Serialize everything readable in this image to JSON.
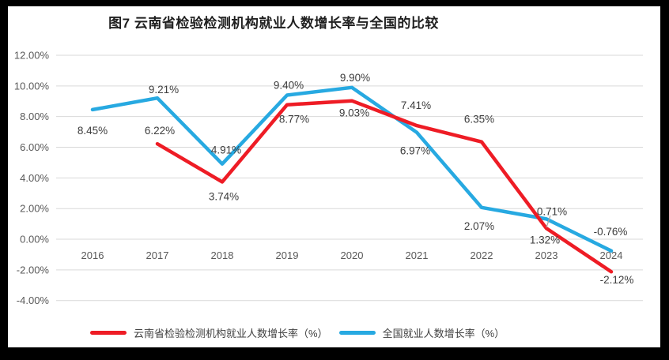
{
  "chart_data": {
    "type": "line",
    "title": "图7  云南省检验检测机构就业人数增长率与全国的比较",
    "categories": [
      "2016",
      "2017",
      "2018",
      "2019",
      "2020",
      "2021",
      "2022",
      "2023",
      "2024"
    ],
    "series": [
      {
        "name": "云南省检验检测机构就业人数增长率（%）",
        "color": "#ee1c25",
        "values": [
          null,
          6.22,
          3.74,
          8.77,
          9.03,
          7.41,
          6.35,
          0.71,
          -2.12
        ],
        "labels": [
          null,
          "6.22%",
          "3.74%",
          "8.77%",
          "9.03%",
          "7.41%",
          "6.35%",
          "0.71%",
          "-2.12%"
        ]
      },
      {
        "name": "全国就业人数增长率（%）",
        "color": "#27a9e1",
        "values": [
          8.45,
          9.21,
          4.91,
          9.4,
          9.9,
          6.97,
          2.07,
          1.32,
          -0.76
        ],
        "labels": [
          "8.45%",
          "9.21%",
          "4.91%",
          "9.40%",
          "9.90%",
          "6.97%",
          "2.07%",
          "1.32%",
          "-0.76%"
        ]
      }
    ],
    "y_axis": {
      "min": -4,
      "max": 12,
      "step": 2,
      "tick_labels": [
        "12.00%",
        "10.00%",
        "8.00%",
        "6.00%",
        "4.00%",
        "2.00%",
        "0.00%",
        "-2.00%",
        "-4.00%"
      ]
    },
    "grid": true,
    "gridline_color": "#d9d9d9",
    "axis_label_color": "#595959",
    "data_label_color": "#3d3d3d",
    "legend_position": "bottom"
  }
}
